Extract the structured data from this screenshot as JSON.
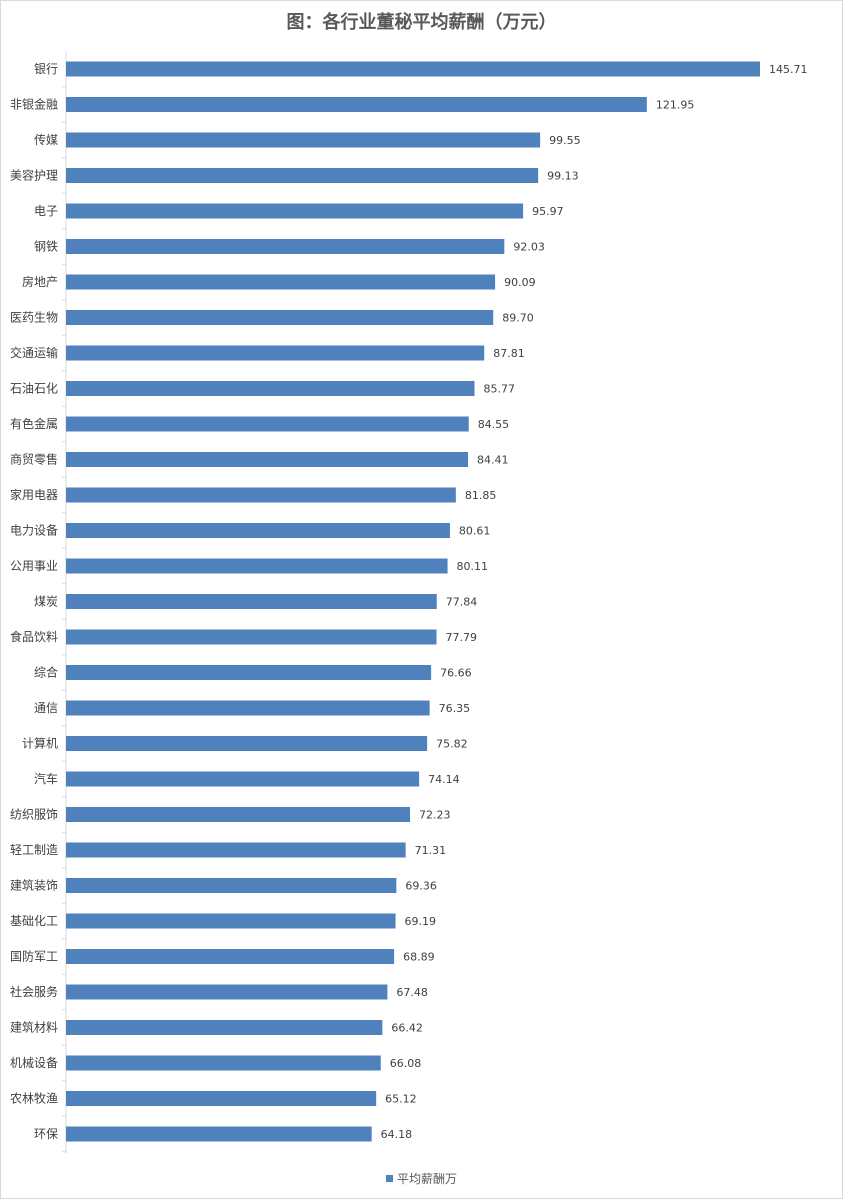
{
  "chart_data": {
    "type": "bar",
    "orientation": "horizontal",
    "title": "图：各行业董秘平均薪酬（万元）",
    "xlabel": "",
    "ylabel": "",
    "xlim": [
      0,
      150
    ],
    "grid": false,
    "legend_position": "bottom",
    "bar_color": "#4f81bd",
    "categories": [
      "银行",
      "非银金融",
      "传媒",
      "美容护理",
      "电子",
      "钢铁",
      "房地产",
      "医药生物",
      "交通运输",
      "石油石化",
      "有色金属",
      "商贸零售",
      "家用电器",
      "电力设备",
      "公用事业",
      "煤炭",
      "食品饮料",
      "综合",
      "通信",
      "计算机",
      "汽车",
      "纺织服饰",
      "轻工制造",
      "建筑装饰",
      "基础化工",
      "国防军工",
      "社会服务",
      "建筑材料",
      "机械设备",
      "农林牧渔",
      "环保"
    ],
    "series": [
      {
        "name": "平均薪酬万",
        "values": [
          145.71,
          121.95,
          99.55,
          99.13,
          95.97,
          92.03,
          90.09,
          89.7,
          87.81,
          85.77,
          84.55,
          84.41,
          81.85,
          80.61,
          80.11,
          77.84,
          77.79,
          76.66,
          76.35,
          75.82,
          74.14,
          72.23,
          71.31,
          69.36,
          69.19,
          68.89,
          67.48,
          66.42,
          66.08,
          65.12,
          64.18
        ],
        "labels": [
          "145.71",
          "121.95",
          "99.55",
          "99.13",
          "95.97",
          "92.03",
          "90.09",
          "89.70",
          "87.81",
          "85.77",
          "84.55",
          "84.41",
          "81.85",
          "80.61",
          "80.11",
          "77.84",
          "77.79",
          "76.66",
          "76.35",
          "75.82",
          "74.14",
          "72.23",
          "71.31",
          "69.36",
          "69.19",
          "68.89",
          "67.48",
          "66.42",
          "66.08",
          "65.12",
          "64.18"
        ]
      }
    ]
  }
}
